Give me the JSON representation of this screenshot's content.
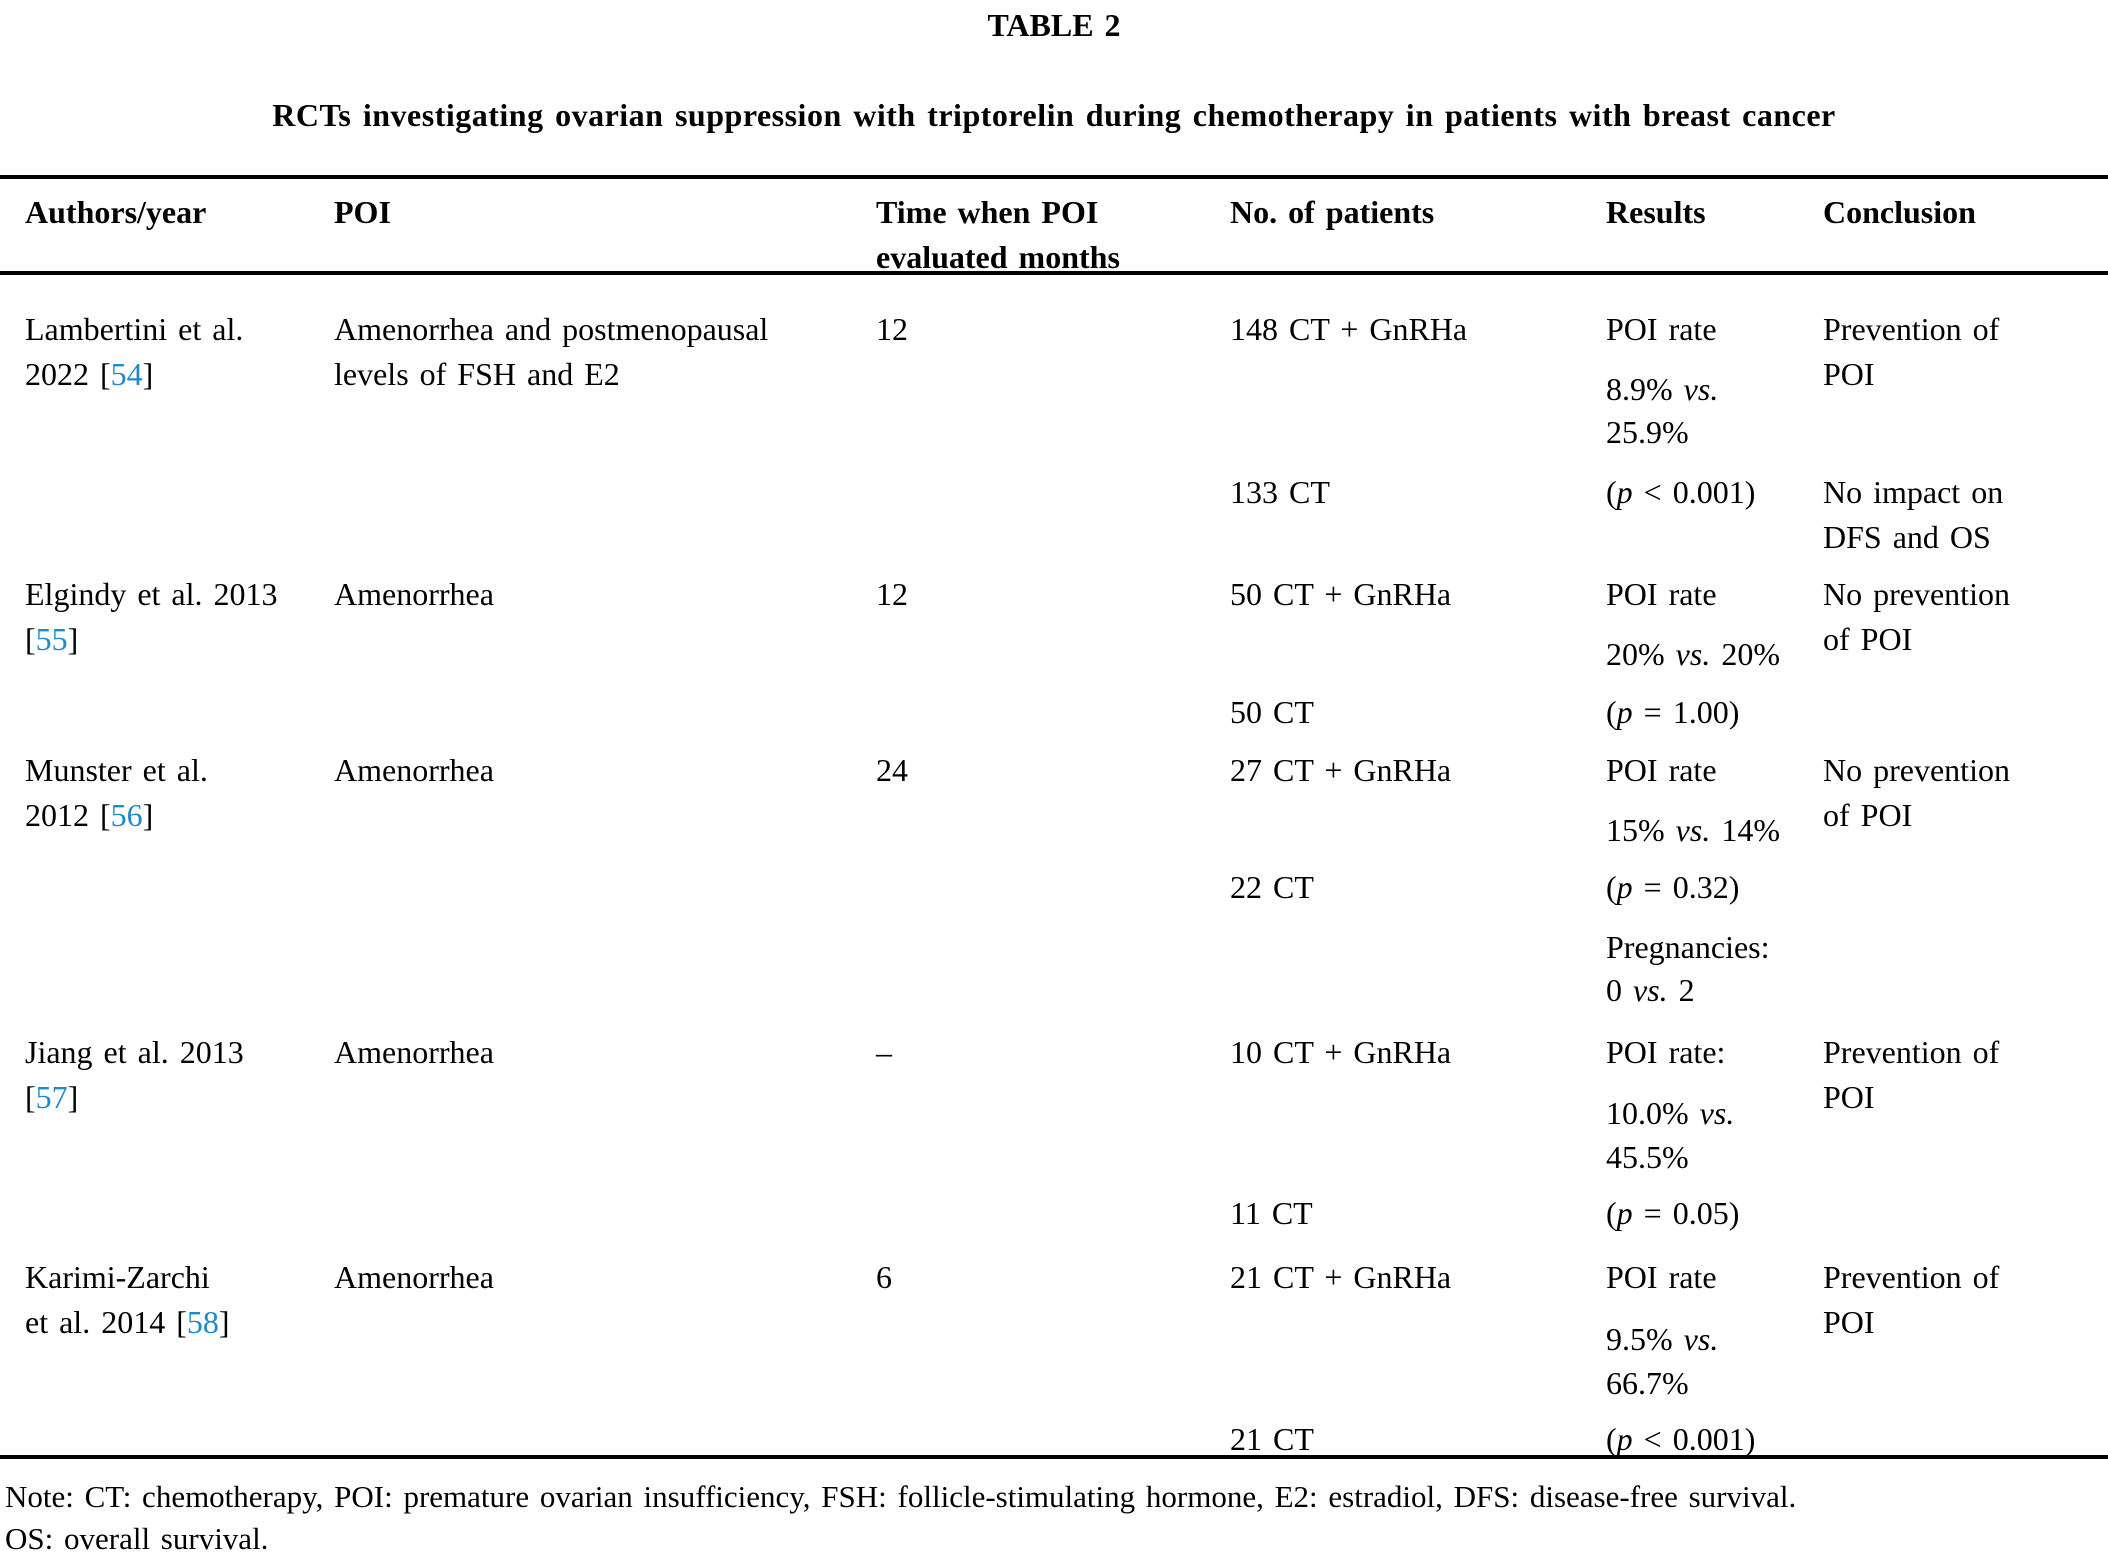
{
  "accent_color": "#1d8bc8",
  "table_label": "TABLE 2",
  "title": "RCTs investigating ovarian suppression with triptorelin during chemotherapy in patients with breast cancer",
  "header": {
    "authors": "Authors/year",
    "poi": "POI",
    "time_line1": "Time when POI",
    "time_line2": "evaluated months",
    "patients": "No. of patients",
    "results": "Results",
    "conclusion": "Conclusion"
  },
  "rows": [
    {
      "authors": {
        "line1": "Lambertini et al.",
        "line2": [
          {
            "t": "2022 ["
          },
          {
            "t": "54",
            "s": "ref"
          },
          {
            "t": "]"
          }
        ]
      },
      "poi": [
        "Amenorrhea and postmenopausal",
        "levels of FSH and E2"
      ],
      "time": "12",
      "patients": [
        "148 CT + GnRHa",
        "133 CT"
      ],
      "results": {
        "l1": "POI rate",
        "l2": [
          {
            "t": "8.9% "
          },
          {
            "t": "vs.",
            "s": "it"
          }
        ],
        "l3": "25.9%",
        "l4": [
          {
            "t": "("
          },
          {
            "t": "p",
            "s": "it"
          },
          {
            "t": " < 0.001)"
          }
        ]
      },
      "conclusion": [
        "Prevention of",
        "POI",
        "No impact on",
        "DFS and OS"
      ]
    },
    {
      "authors": {
        "line1": "Elgindy et al. 2013",
        "line2": [
          {
            "t": "["
          },
          {
            "t": "55",
            "s": "ref"
          },
          {
            "t": "]"
          }
        ]
      },
      "poi": [
        "Amenorrhea"
      ],
      "time": "12",
      "patients": [
        "50 CT + GnRHa",
        "50 CT"
      ],
      "results": {
        "l1": "POI rate",
        "l2": [
          {
            "t": "20% "
          },
          {
            "t": "vs.",
            "s": "it"
          },
          {
            "t": " 20%"
          }
        ],
        "l3": [
          {
            "t": "("
          },
          {
            "t": "p",
            "s": "it"
          },
          {
            "t": " = 1.00)"
          }
        ]
      },
      "conclusion": [
        "No prevention",
        "of POI"
      ]
    },
    {
      "authors": {
        "line1": "Munster et al.",
        "line2": [
          {
            "t": "2012 ["
          },
          {
            "t": "56",
            "s": "ref"
          },
          {
            "t": "]"
          }
        ]
      },
      "poi": [
        "Amenorrhea"
      ],
      "time": "24",
      "patients": [
        "27 CT + GnRHa",
        "22 CT"
      ],
      "results": {
        "l1": "POI rate",
        "l2": [
          {
            "t": "15% "
          },
          {
            "t": "vs.",
            "s": "it"
          },
          {
            "t": " 14%"
          }
        ],
        "l3": [
          {
            "t": "("
          },
          {
            "t": "p",
            "s": "it"
          },
          {
            "t": " = 0.32)"
          }
        ],
        "l4": "Pregnancies:",
        "l5": [
          {
            "t": "0 "
          },
          {
            "t": "vs.",
            "s": "it"
          },
          {
            "t": " 2"
          }
        ]
      },
      "conclusion": [
        "No prevention",
        "of POI"
      ]
    },
    {
      "authors": {
        "line1": "Jiang et al. 2013",
        "line2": [
          {
            "t": "["
          },
          {
            "t": "57",
            "s": "ref"
          },
          {
            "t": "]"
          }
        ]
      },
      "poi": [
        "Amenorrhea"
      ],
      "time": "–",
      "patients": [
        "10 CT + GnRHa",
        "11 CT"
      ],
      "results": {
        "l1": "POI rate:",
        "l2": [
          {
            "t": "10.0% "
          },
          {
            "t": "vs.",
            "s": "it"
          }
        ],
        "l3": "45.5%",
        "l4": [
          {
            "t": "("
          },
          {
            "t": "p",
            "s": "it"
          },
          {
            "t": " = 0.05)"
          }
        ]
      },
      "conclusion": [
        "Prevention of",
        "POI"
      ]
    },
    {
      "authors": {
        "line1": "Karimi-Zarchi",
        "line2": [
          {
            "t": "et al. 2014 ["
          },
          {
            "t": "58",
            "s": "ref"
          },
          {
            "t": "]"
          }
        ]
      },
      "poi": [
        "Amenorrhea"
      ],
      "time": "6",
      "patients": [
        "21 CT + GnRHa",
        "21 CT"
      ],
      "results": {
        "l1": "POI rate",
        "l2": [
          {
            "t": "9.5% "
          },
          {
            "t": "vs.",
            "s": "it"
          }
        ],
        "l3": "66.7%",
        "l4": [
          {
            "t": "("
          },
          {
            "t": "p",
            "s": "it"
          },
          {
            "t": " < 0.001)"
          }
        ]
      },
      "conclusion": [
        "Prevention of",
        "POI"
      ]
    }
  ],
  "note_line1": "Note: CT: chemotherapy, POI: premature ovarian insufficiency, FSH: follicle-stimulating hormone, E2: estradiol, DFS: disease-free survival.",
  "note_line2": "OS: overall survival."
}
